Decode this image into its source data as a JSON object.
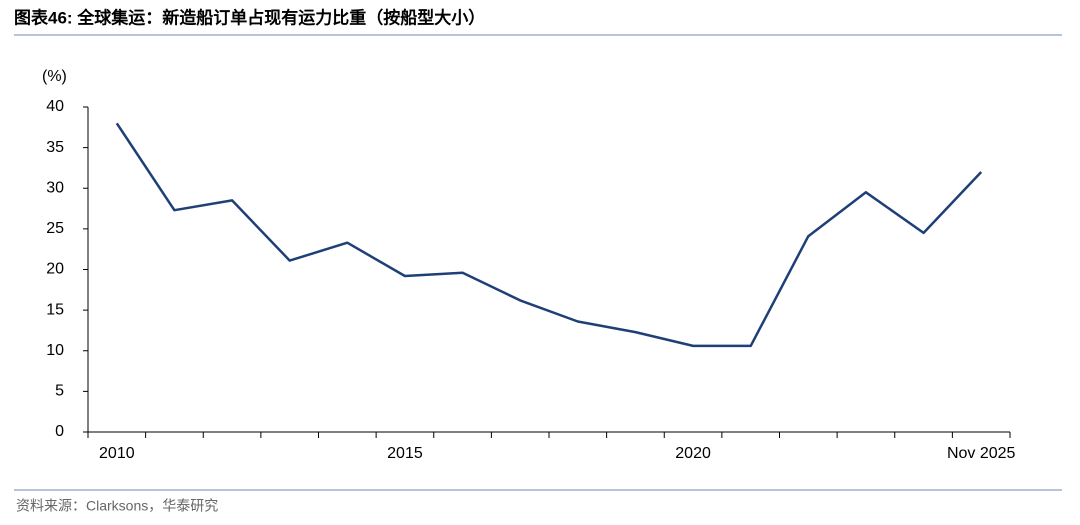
{
  "chart_data": {
    "type": "line",
    "title": "图表46:  全球集运：新造船订单占现有运力比重（按船型大小）",
    "y_label": "(%)",
    "source": "资料来源：Clarksons，华泰研究",
    "categories": [
      "2010",
      null,
      null,
      null,
      null,
      "2015",
      null,
      null,
      null,
      null,
      "2020",
      null,
      null,
      null,
      null,
      "Nov 2025"
    ],
    "values": [
      38.0,
      27.3,
      28.5,
      21.1,
      23.3,
      19.2,
      19.6,
      16.2,
      13.6,
      12.3,
      10.6,
      10.6,
      24.1,
      29.5,
      24.5,
      32.0
    ],
    "color": "#1f3f77",
    "ylim": [
      0,
      40
    ],
    "yticks": [
      0,
      5,
      10,
      15,
      20,
      25,
      30,
      35,
      40
    ],
    "grid": false
  }
}
